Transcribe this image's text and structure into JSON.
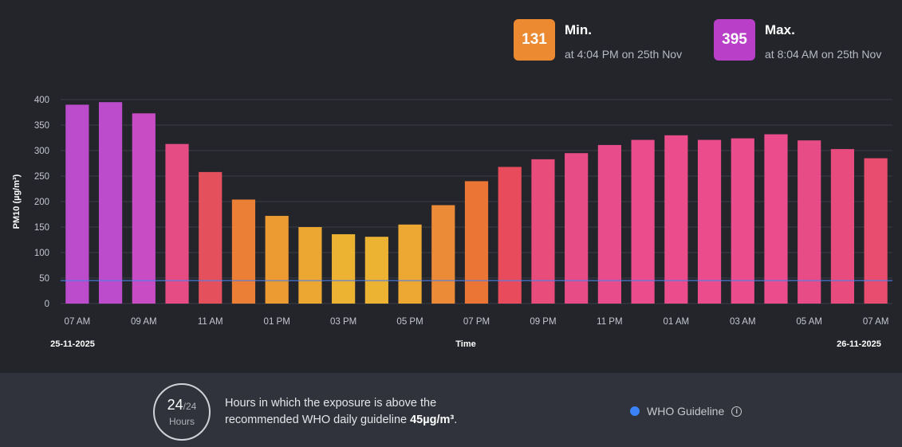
{
  "stats": {
    "min": {
      "value": "131",
      "title": "Min.",
      "subtitle": "at 4:04 PM on 25th Nov",
      "color": "#ec8a32"
    },
    "max": {
      "value": "395",
      "title": "Max.",
      "subtitle": "at 8:04 AM on 25th Nov",
      "color": "#b93fc8"
    }
  },
  "chart_data": {
    "type": "bar",
    "title": "",
    "xlabel": "Time",
    "ylabel": "PM10 (µg/m³)",
    "ylim": [
      0,
      400
    ],
    "yticks": [
      0,
      50,
      100,
      150,
      200,
      250,
      300,
      350,
      400
    ],
    "categories": [
      "07 AM",
      "08 AM",
      "09 AM",
      "10 AM",
      "11 AM",
      "12 PM",
      "01 PM",
      "02 PM",
      "03 PM",
      "04 PM",
      "05 PM",
      "06 PM",
      "07 PM",
      "08 PM",
      "09 PM",
      "10 PM",
      "11 PM",
      "12 AM",
      "01 AM",
      "02 AM",
      "03 AM",
      "04 AM",
      "05 AM",
      "06 AM",
      "07 AM"
    ],
    "values": [
      390,
      395,
      373,
      313,
      258,
      204,
      172,
      150,
      136,
      131,
      155,
      193,
      240,
      268,
      283,
      295,
      311,
      321,
      330,
      321,
      324,
      332,
      320,
      303,
      285
    ],
    "colors": [
      "#bd4ccc",
      "#bd4ccc",
      "#c84cc4",
      "#e54c84",
      "#e4515c",
      "#eb7f35",
      "#ec9a32",
      "#eca732",
      "#ecb232",
      "#ecb332",
      "#eca832",
      "#eb8a37",
      "#ea7535",
      "#e84c5c",
      "#e84c7a",
      "#e84c86",
      "#e94c8a",
      "#ea4c8c",
      "#ea4c8c",
      "#ea4c8c",
      "#ea4c8c",
      "#ea4c8c",
      "#e84c86",
      "#e84c7e",
      "#e84c6e"
    ],
    "xtick_labels": [
      "07 AM",
      "09 AM",
      "11 AM",
      "01 PM",
      "03 PM",
      "05 PM",
      "07 PM",
      "09 PM",
      "11 PM",
      "01 AM",
      "03 AM",
      "05 AM",
      "07 AM"
    ],
    "date_start": "25-11-2025",
    "date_end": "26-11-2025",
    "guideline": {
      "name": "WHO Guideline",
      "value": 45,
      "color": "#4f7fe8"
    }
  },
  "footer": {
    "hours_above": "24",
    "hours_total": "/24",
    "hours_unit": "Hours",
    "desc_text": "Hours in which the exposure is above the recommended WHO daily guideline ",
    "desc_value": "45µg/m³",
    "desc_end": ".",
    "legend_label": "WHO Guideline"
  }
}
